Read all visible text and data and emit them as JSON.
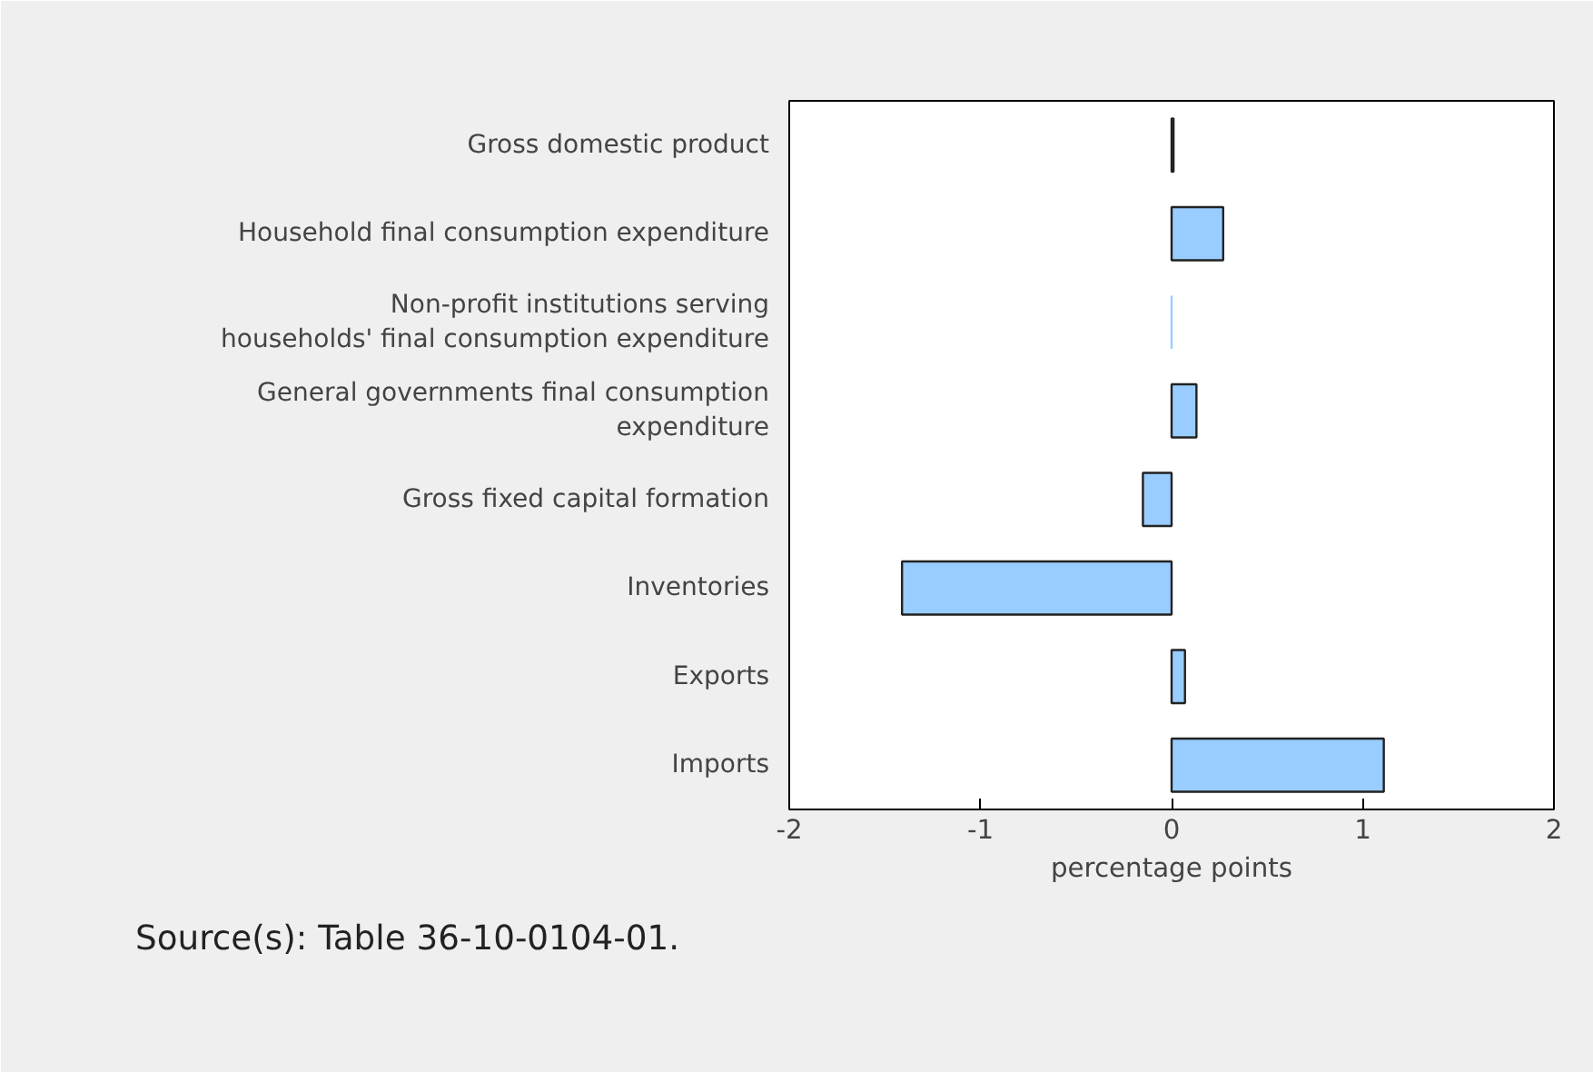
{
  "chart_data": {
    "type": "bar",
    "orientation": "horizontal",
    "categories": [
      "Gross domestic product",
      "Household final consumption expenditure",
      "Non-profit institutions serving households' final consumption expenditure",
      "General governments final consumption expenditure",
      "Gross fixed capital formation",
      "Inventories",
      "Exports",
      "Imports"
    ],
    "values": [
      0.01,
      0.27,
      0.0,
      0.13,
      -0.15,
      -1.41,
      0.07,
      1.11
    ],
    "color": "#99ccff",
    "xlim": [
      -2,
      2
    ],
    "xticks": [
      -2,
      -1,
      0,
      1,
      2
    ],
    "xlabel": "percentage points",
    "grid": false,
    "annotations": [
      "Source(s):  Table 36-10-0104-01."
    ]
  }
}
